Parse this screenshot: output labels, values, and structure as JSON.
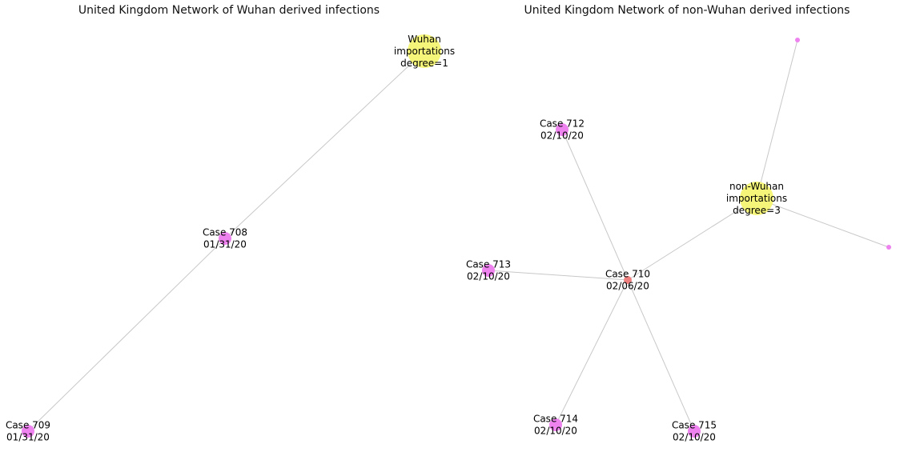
{
  "panels": [
    {
      "title": "United Kingdom Network of Wuhan derived infections",
      "nodes": [
        {
          "id": "hub",
          "lines": [
            "Wuhan",
            "importations",
            "degree=1"
          ],
          "kind": "hub",
          "color": "#f5f57a"
        },
        {
          "id": "c708",
          "lines": [
            "Case 708",
            "01/31/20"
          ],
          "kind": "case",
          "color": "#ee82ee"
        },
        {
          "id": "c709",
          "lines": [
            "Case 709",
            "01/31/20"
          ],
          "kind": "case",
          "color": "#ee82ee"
        }
      ],
      "edges": [
        [
          "hub",
          "c708"
        ],
        [
          "c708",
          "c709"
        ]
      ]
    },
    {
      "title": "United Kingdom Network of non-Wuhan derived infections",
      "nodes": [
        {
          "id": "hub",
          "lines": [
            "non-Wuhan",
            "importations",
            "degree=3"
          ],
          "kind": "hub",
          "color": "#f5f57a"
        },
        {
          "id": "c710",
          "lines": [
            "Case 710",
            "02/06/20"
          ],
          "kind": "case-small",
          "color": "#f08080"
        },
        {
          "id": "c712",
          "lines": [
            "Case 712",
            "02/10/20"
          ],
          "kind": "case",
          "color": "#ee82ee"
        },
        {
          "id": "c713",
          "lines": [
            "Case 713",
            "02/10/20"
          ],
          "kind": "case",
          "color": "#ee82ee"
        },
        {
          "id": "c714",
          "lines": [
            "Case 714",
            "02/10/20"
          ],
          "kind": "case",
          "color": "#ee82ee"
        },
        {
          "id": "c715",
          "lines": [
            "Case 715",
            "02/10/20"
          ],
          "kind": "case",
          "color": "#ee82ee"
        },
        {
          "id": "u1",
          "lines": [],
          "kind": "dot",
          "color": "#ee82ee"
        },
        {
          "id": "u2",
          "lines": [],
          "kind": "dot",
          "color": "#ee82ee"
        }
      ],
      "edges": [
        [
          "hub",
          "u1"
        ],
        [
          "hub",
          "u2"
        ],
        [
          "hub",
          "c710"
        ],
        [
          "c710",
          "c712"
        ],
        [
          "c710",
          "c713"
        ],
        [
          "c710",
          "c714"
        ],
        [
          "c710",
          "c715"
        ]
      ]
    }
  ],
  "edge_color": "#c8c8c8"
}
